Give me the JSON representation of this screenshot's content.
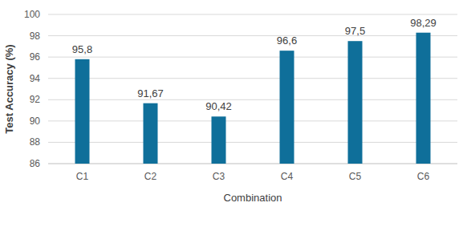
{
  "chart_data": {
    "type": "bar",
    "x_label": "Combination",
    "y_label": "Test Accuracy (%)",
    "categories": [
      "C1",
      "C2",
      "C3",
      "C4",
      "C5",
      "C6"
    ],
    "values": [
      95.8,
      91.67,
      90.42,
      96.6,
      97.5,
      98.29
    ],
    "value_labels": [
      "95,8",
      "91,67",
      "90,42",
      "96,6",
      "97,5",
      "98,29"
    ],
    "color": "#0f6f9a",
    "ylim": [
      86,
      100
    ],
    "yticks": [
      86,
      88,
      90,
      92,
      94,
      96,
      98,
      100
    ],
    "grid": true,
    "data_labels": true
  }
}
